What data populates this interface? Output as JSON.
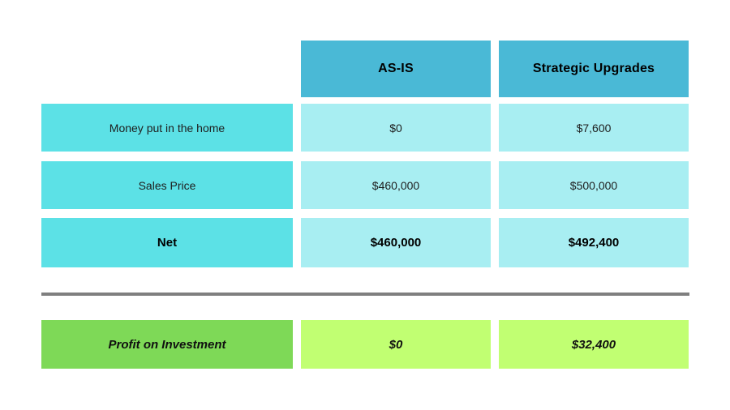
{
  "table": {
    "columns": [
      {
        "label": ""
      },
      {
        "label": "AS-IS"
      },
      {
        "label": "Strategic Upgrades"
      }
    ],
    "rows": [
      {
        "label": "Money put in the home",
        "as_is": "$0",
        "upgrades": "$7,600",
        "emphasis": false
      },
      {
        "label": "Sales Price",
        "as_is": "$460,000",
        "upgrades": "$500,000",
        "emphasis": false
      },
      {
        "label": "Net",
        "as_is": "$460,000",
        "upgrades": "$492,400",
        "emphasis": true
      }
    ],
    "summary_row": {
      "label": "Profit on Investment",
      "as_is": "$0",
      "upgrades": "$32,400"
    }
  },
  "chart_data": {
    "type": "table",
    "title": "",
    "columns": [
      "",
      "AS-IS",
      "Strategic Upgrades"
    ],
    "rows": [
      [
        "Money put in the home",
        "$0",
        "$7,600"
      ],
      [
        "Sales Price",
        "$460,000",
        "$500,000"
      ],
      [
        "Net",
        "$460,000",
        "$492,400"
      ],
      [
        "Profit on Investment",
        "$0",
        "$32,400"
      ]
    ],
    "numeric_values": {
      "money_put_in_the_home": [
        0,
        7600
      ],
      "sales_price": [
        460000,
        500000
      ],
      "net": [
        460000,
        492400
      ],
      "profit_on_investment": [
        0,
        32400
      ]
    }
  },
  "colors": {
    "header_bg": "#4ab9d6",
    "label_bg": "#5ce1e6",
    "cell_bg": "#a8eef2",
    "summary_label_bg": "#7ed957",
    "summary_cell_bg": "#c1ff72",
    "divider": "#7f7f7f"
  }
}
